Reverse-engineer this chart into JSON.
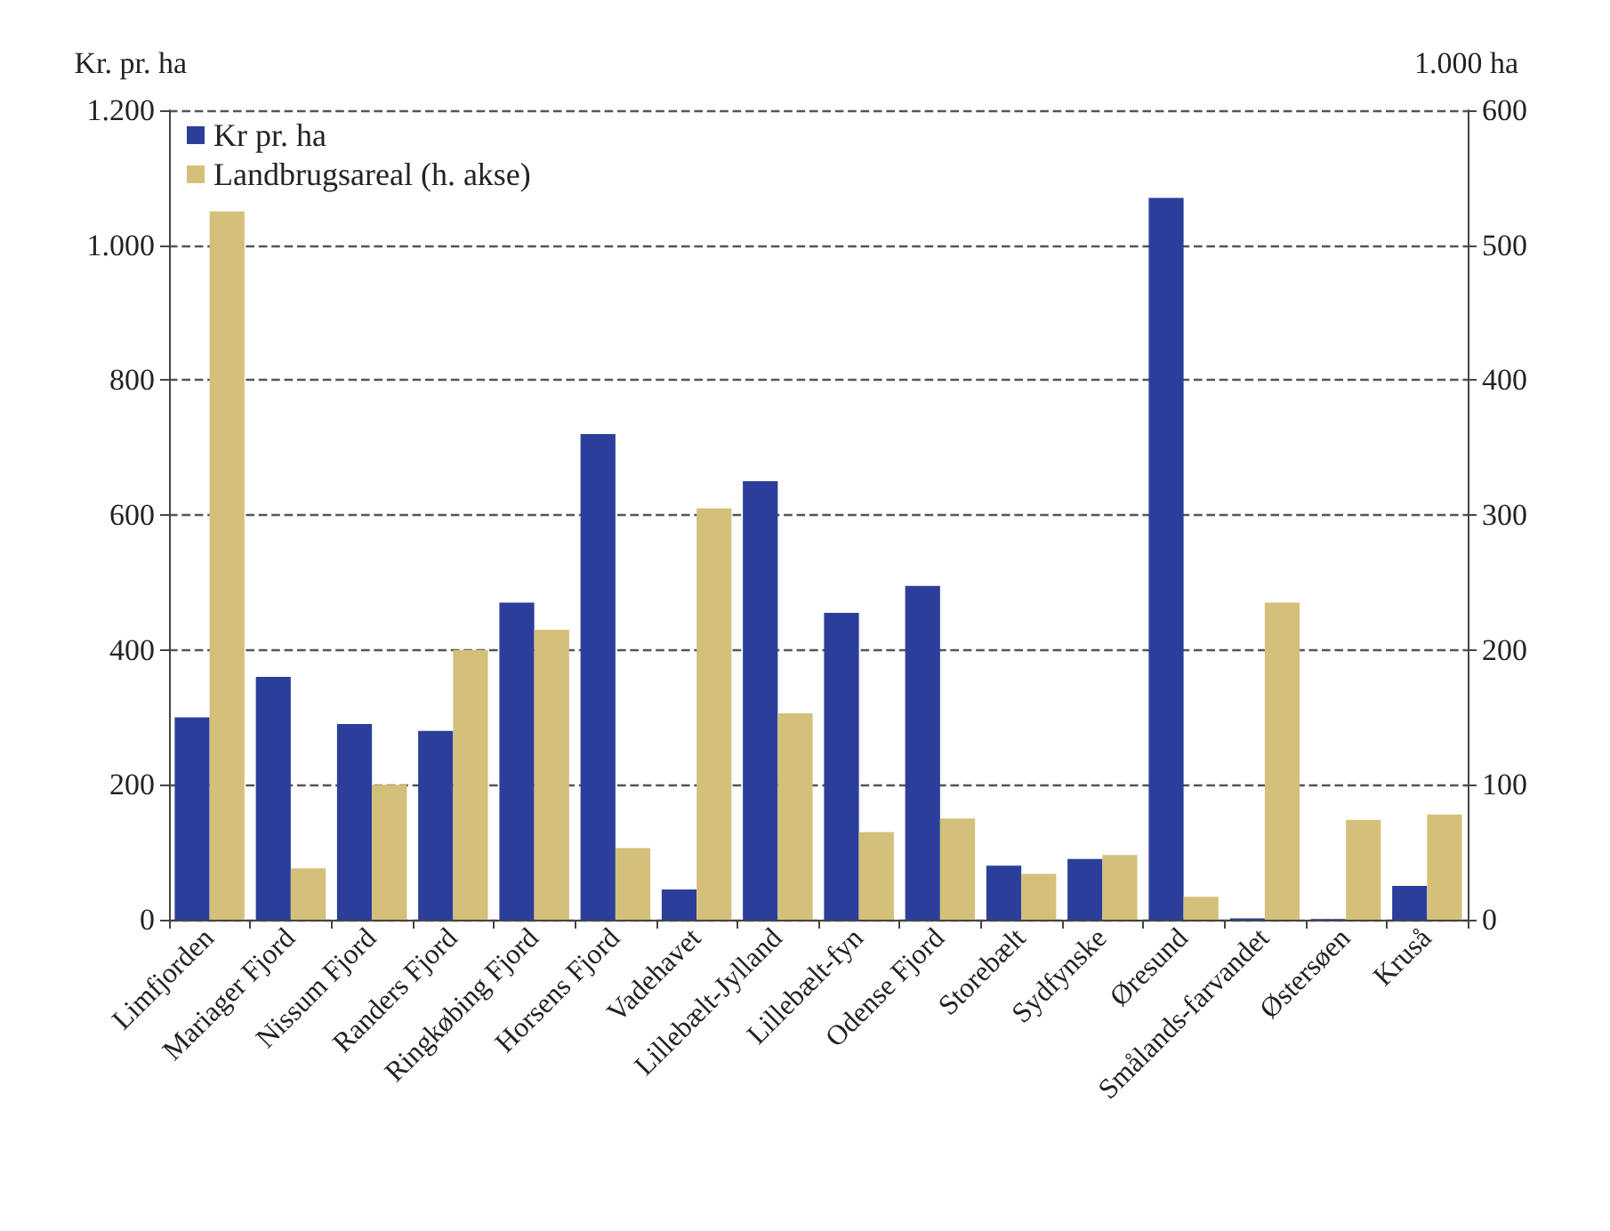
{
  "chart_data": {
    "type": "bar",
    "ylabel": "Kr. pr. ha",
    "y2label": "1.000 ha",
    "categories": [
      "Limfjorden",
      "Mariager Fjord",
      "Nissum Fjord",
      "Randers Fjord",
      "Ringkøbing Fjord",
      "Horsens Fjord",
      "Vadehavet",
      "Lillebælt-Jylland",
      "Lillebælt-fyn",
      "Odense Fjord",
      "Storebælt",
      "Sydfynske",
      "Øresund",
      "Smålands-farvandet",
      "Østersøen",
      "Kruså"
    ],
    "series": [
      {
        "name": "Kr pr. ha",
        "color": "#2b3f9a",
        "values": [
          300,
          360,
          290,
          280,
          470,
          720,
          45,
          650,
          455,
          495,
          80,
          90,
          1070,
          2,
          1,
          50
        ]
      },
      {
        "name": "Landbrugsareal (h. akse)",
        "color": "#d4c07a",
        "axis": "y2",
        "values": [
          525,
          38,
          100,
          200,
          215,
          53,
          305,
          153,
          65,
          75,
          34,
          48,
          17,
          235,
          74,
          78
        ]
      }
    ],
    "ylim": [
      0,
      1200
    ],
    "yticks": [
      {
        "value": 0,
        "label": "0"
      },
      {
        "value": 200,
        "label": "200"
      },
      {
        "value": 400,
        "label": "400"
      },
      {
        "value": 600,
        "label": "600"
      },
      {
        "value": 800,
        "label": "800"
      },
      {
        "value": 1000,
        "label": "1.000"
      },
      {
        "value": 1200,
        "label": "1.200"
      }
    ],
    "y2lim": [
      0,
      600
    ],
    "y2ticks": [
      0,
      100,
      200,
      300,
      400,
      500,
      600
    ],
    "grid": "y",
    "legend": "top left"
  }
}
